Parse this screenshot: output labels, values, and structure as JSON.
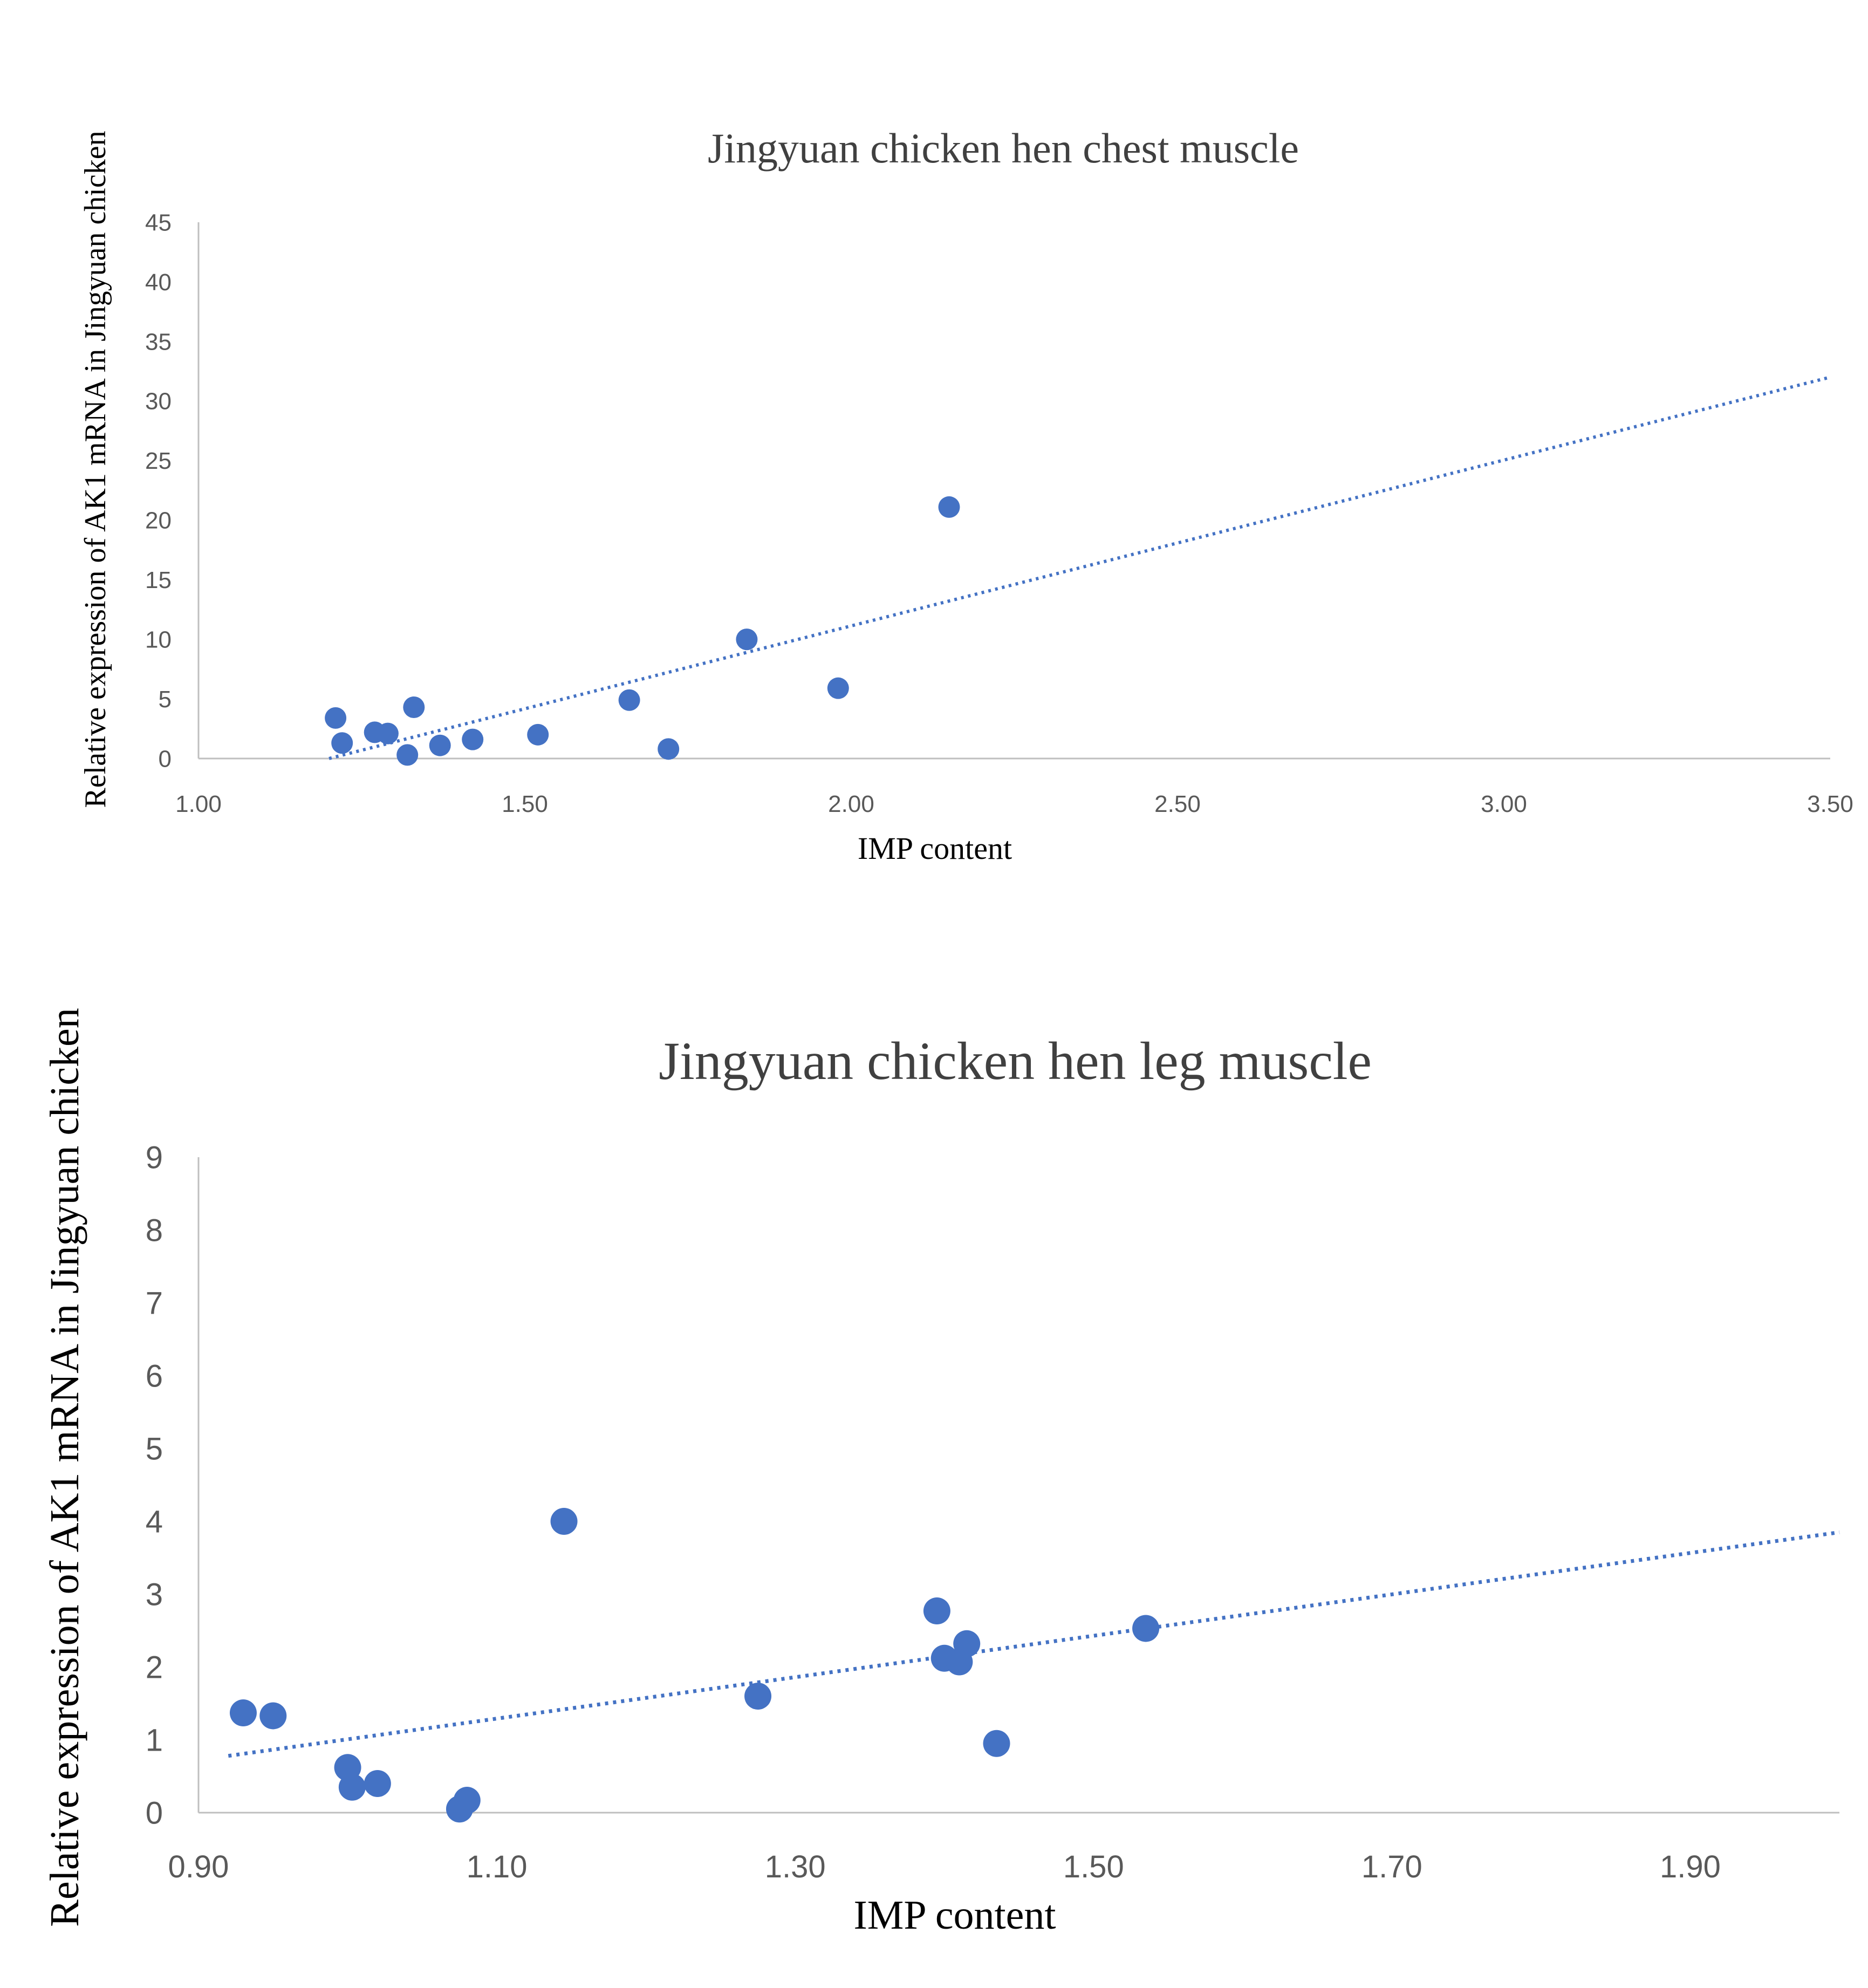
{
  "chart_data": [
    {
      "type": "scatter",
      "title": "Jingyuan  chicken hen chest muscle",
      "xlabel": "IMP content",
      "ylabel": "Relative expression of AK1  mRNA  in Jingyuan chicken",
      "xlim": [
        1.0,
        3.5
      ],
      "ylim": [
        0,
        45
      ],
      "xticks": [
        "1.00",
        "1.50",
        "2.00",
        "2.50",
        "3.00",
        "3.50"
      ],
      "yticks": [
        "0",
        "5",
        "10",
        "15",
        "20",
        "25",
        "30",
        "35",
        "40",
        "45"
      ],
      "grid": false,
      "marker_color": "#4472c4",
      "trendline": {
        "type": "linear",
        "style": "dotted",
        "x_start": 1.2,
        "y_start": 0.0,
        "x_end": 3.5,
        "y_end": 32.0
      },
      "series": [
        {
          "name": "chest",
          "points": [
            {
              "x": 1.21,
              "y": 3.4
            },
            {
              "x": 1.22,
              "y": 1.3
            },
            {
              "x": 1.27,
              "y": 2.2
            },
            {
              "x": 1.29,
              "y": 2.1
            },
            {
              "x": 1.32,
              "y": 0.3
            },
            {
              "x": 1.33,
              "y": 4.3
            },
            {
              "x": 1.37,
              "y": 1.1
            },
            {
              "x": 1.42,
              "y": 1.6
            },
            {
              "x": 1.52,
              "y": 2.0
            },
            {
              "x": 1.66,
              "y": 4.9
            },
            {
              "x": 1.72,
              "y": 0.8
            },
            {
              "x": 1.84,
              "y": 10.0
            },
            {
              "x": 1.98,
              "y": 5.9
            },
            {
              "x": 2.15,
              "y": 21.1
            }
          ]
        }
      ]
    },
    {
      "type": "scatter",
      "title": "Jingyuan  chicken hen leg muscle",
      "xlabel": "IMP content",
      "ylabel": "Relative expression  of AK1  mRNA  in Jingyuan  chicken",
      "xlim": [
        0.9,
        2.0
      ],
      "ylim": [
        0,
        9
      ],
      "xticks": [
        "0.90",
        "1.10",
        "1.30",
        "1.50",
        "1.70",
        "1.90"
      ],
      "yticks": [
        "0",
        "1",
        "2",
        "3",
        "4",
        "5",
        "6",
        "7",
        "8",
        "9"
      ],
      "grid": false,
      "marker_color": "#4472c4",
      "trendline": {
        "type": "linear",
        "style": "dotted",
        "x_start": 0.92,
        "y_start": 0.78,
        "x_end": 2.0,
        "y_end": 3.85
      },
      "series": [
        {
          "name": "leg",
          "points": [
            {
              "x": 0.93,
              "y": 1.37
            },
            {
              "x": 0.95,
              "y": 1.33
            },
            {
              "x": 1.0,
              "y": 0.62
            },
            {
              "x": 1.003,
              "y": 0.35
            },
            {
              "x": 1.02,
              "y": 0.4
            },
            {
              "x": 1.075,
              "y": 0.05
            },
            {
              "x": 1.08,
              "y": 0.17
            },
            {
              "x": 1.145,
              "y": 4.0
            },
            {
              "x": 1.275,
              "y": 1.6
            },
            {
              "x": 1.395,
              "y": 2.77
            },
            {
              "x": 1.4,
              "y": 2.12
            },
            {
              "x": 1.41,
              "y": 2.07
            },
            {
              "x": 1.415,
              "y": 2.32
            },
            {
              "x": 1.435,
              "y": 0.95
            },
            {
              "x": 1.535,
              "y": 2.53
            }
          ]
        }
      ]
    }
  ]
}
